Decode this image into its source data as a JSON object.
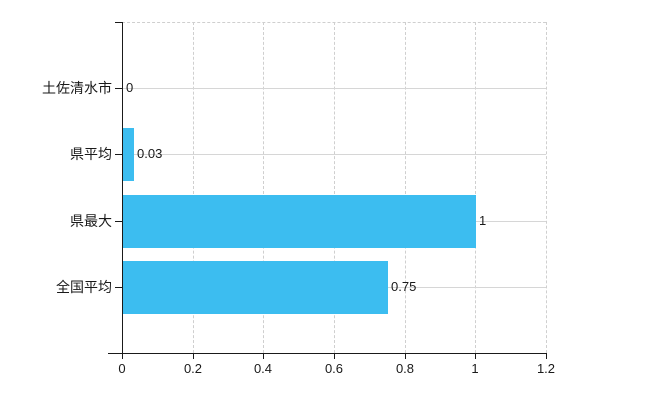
{
  "chart_data": {
    "type": "bar",
    "orientation": "horizontal",
    "title": "",
    "xlabel": "",
    "ylabel": "",
    "categories": [
      "土佐清水市",
      "県平均",
      "県最大",
      "全国平均"
    ],
    "values": [
      0,
      0.03,
      1,
      0.75
    ],
    "value_labels": [
      "0",
      "0.03",
      "1",
      "0.75"
    ],
    "x_ticks": [
      0,
      0.2,
      0.4,
      0.6,
      0.8,
      1,
      1.2
    ],
    "x_tick_labels": [
      "0",
      "0.2",
      "0.4",
      "0.6",
      "0.8",
      "1",
      "1.2"
    ],
    "xlim": [
      0,
      1.2
    ],
    "grid": true,
    "legend": "none",
    "colors": {
      "bar": "#3cbdf0",
      "axis": "#1a1a1a",
      "text": "#1a1a1a",
      "gridline": "#cfcfcf"
    }
  }
}
